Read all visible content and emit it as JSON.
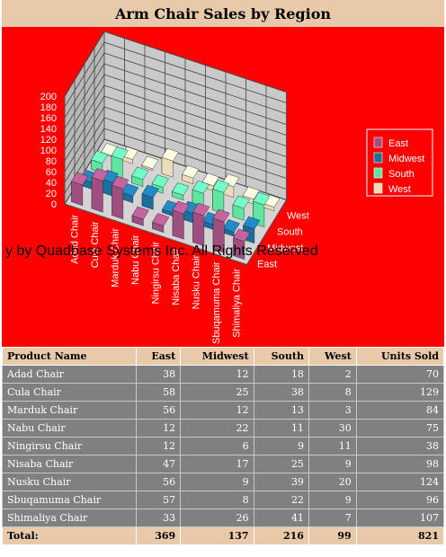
{
  "page": {
    "title": "Arm Chair Sales by Region",
    "watermark": "y by Quadbase Systems Inc. All Rights Reserved",
    "background_color": "#ff0000",
    "header_color": "#e8c9aa",
    "table_body_color": "#808080"
  },
  "chart_data": {
    "type": "bar",
    "subtype": "3d-grouped",
    "title": "Arm Chair Sales by Region",
    "categories": [
      "Adad Chair",
      "Cula Chair",
      "Marduk Chair",
      "Nabu Chair",
      "Ningirsu Chair",
      "Nisaba Chair",
      "Nusku Chair",
      "Sbuqamuma Chair",
      "Shimaliya Chair"
    ],
    "series": [
      {
        "name": "East",
        "values": [
          38,
          58,
          56,
          12,
          12,
          47,
          56,
          57,
          33
        ],
        "color": "#9e4f80"
      },
      {
        "name": "Midwest",
        "values": [
          12,
          25,
          12,
          22,
          6,
          17,
          9,
          8,
          26
        ],
        "color": "#1a6ea0"
      },
      {
        "name": "South",
        "values": [
          18,
          38,
          13,
          11,
          9,
          25,
          39,
          22,
          41
        ],
        "color": "#5de6a0"
      },
      {
        "name": "West",
        "values": [
          2,
          8,
          3,
          30,
          11,
          9,
          20,
          9,
          7
        ],
        "color": "#eedcb8"
      }
    ],
    "y_ticks": [
      "0",
      "20",
      "40",
      "60",
      "80",
      "100",
      "120",
      "140",
      "160",
      "180",
      "200"
    ],
    "ylim": [
      0,
      200
    ],
    "grid": true,
    "legend_position": "right"
  },
  "table": {
    "headers": [
      "Product Name",
      "East",
      "Midwest",
      "South",
      "West",
      "Units Sold"
    ],
    "rows": [
      [
        "Adad Chair",
        "38",
        "12",
        "18",
        "2",
        "70"
      ],
      [
        "Cula Chair",
        "58",
        "25",
        "38",
        "8",
        "129"
      ],
      [
        "Marduk Chair",
        "56",
        "12",
        "13",
        "3",
        "84"
      ],
      [
        "Nabu Chair",
        "12",
        "22",
        "11",
        "30",
        "75"
      ],
      [
        "Ningirsu Chair",
        "12",
        "6",
        "9",
        "11",
        "38"
      ],
      [
        "Nisaba Chair",
        "47",
        "17",
        "25",
        "9",
        "98"
      ],
      [
        "Nusku Chair",
        "56",
        "9",
        "39",
        "20",
        "124"
      ],
      [
        "Sbuqamuma Chair",
        "57",
        "8",
        "22",
        "9",
        "96"
      ],
      [
        "Shimaliya Chair",
        "33",
        "26",
        "41",
        "7",
        "107"
      ]
    ],
    "total": [
      "Total:",
      "369",
      "137",
      "216",
      "99",
      "821"
    ]
  }
}
